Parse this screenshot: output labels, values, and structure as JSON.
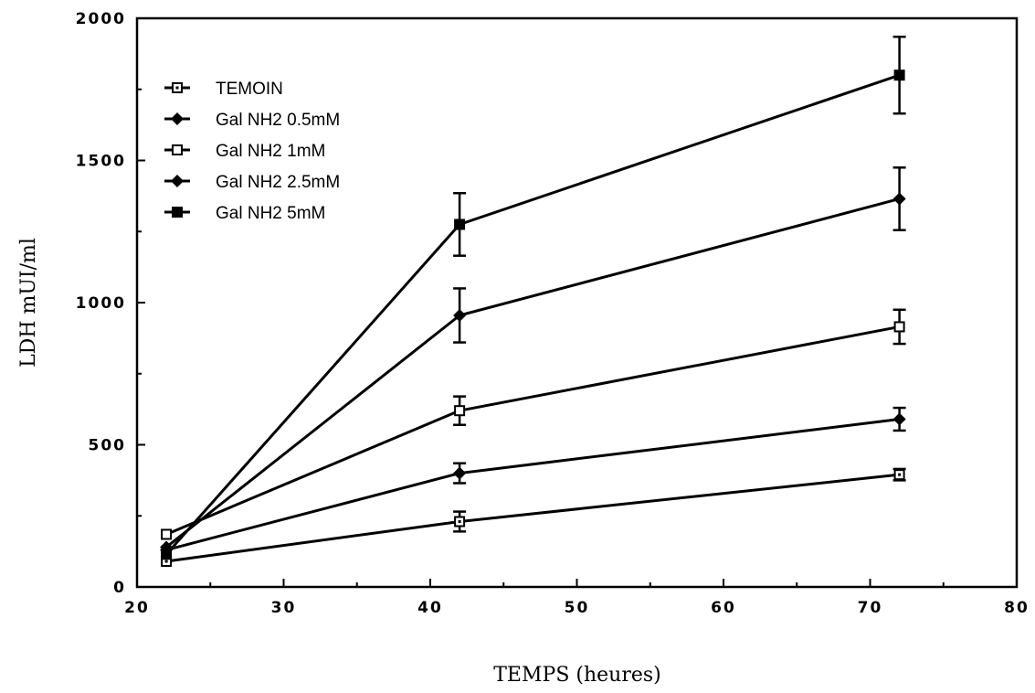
{
  "chart_data": {
    "type": "line",
    "xlabel": "TEMPS (heures)",
    "ylabel": "LDH  mUI/ml",
    "xlim": [
      20,
      80
    ],
    "ylim": [
      0,
      2000
    ],
    "x_ticks": [
      20,
      30,
      40,
      50,
      60,
      70,
      80
    ],
    "y_ticks": [
      0,
      500,
      1000,
      1500,
      2000
    ],
    "x": [
      22,
      42,
      72
    ],
    "grid": false,
    "legend_position": "top-left",
    "series": [
      {
        "name": "TEMOIN",
        "marker": "dotted-square",
        "values": [
          90,
          230,
          395
        ],
        "errors": [
          5,
          35,
          20
        ]
      },
      {
        "name": "Gal NH2 0.5mM",
        "marker": "diamond",
        "values": [
          130,
          400,
          590
        ],
        "errors": [
          5,
          35,
          40
        ]
      },
      {
        "name": "Gal NH2 1mM",
        "marker": "open-square",
        "values": [
          185,
          620,
          915
        ],
        "errors": [
          5,
          50,
          60
        ]
      },
      {
        "name": "Gal NH2 2.5mM",
        "marker": "diamond",
        "values": [
          140,
          955,
          1365
        ],
        "errors": [
          5,
          95,
          110
        ]
      },
      {
        "name": "Gal NH2 5mM",
        "marker": "filled-square",
        "values": [
          115,
          1275,
          1800
        ],
        "errors": [
          5,
          110,
          135
        ]
      }
    ]
  }
}
